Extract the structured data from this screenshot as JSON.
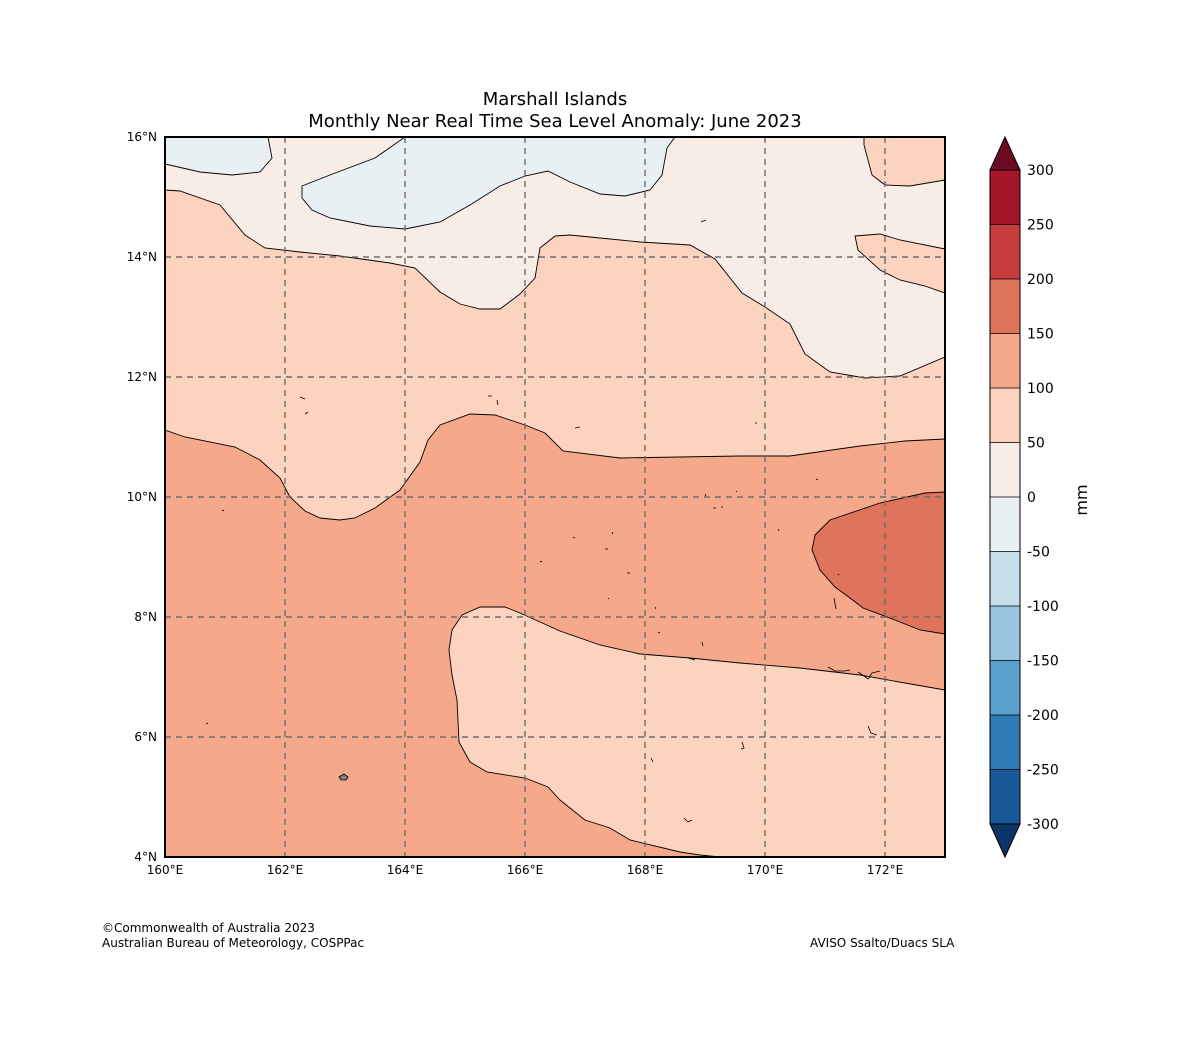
{
  "title": {
    "line1": "Marshall Islands",
    "line2": "Monthly Near Real Time Sea Level Anomaly: June 2023"
  },
  "chart_data": {
    "type": "contour-map",
    "region": "Marshall Islands",
    "period": "June 2023",
    "variable": "Monthly Near Real Time Sea Level Anomaly",
    "xlim": [
      160,
      173
    ],
    "ylim": [
      4,
      16
    ],
    "x_ticks": [
      {
        "value": 160,
        "label": "160°E"
      },
      {
        "value": 162,
        "label": "162°E"
      },
      {
        "value": 164,
        "label": "164°E"
      },
      {
        "value": 166,
        "label": "166°E"
      },
      {
        "value": 168,
        "label": "168°E"
      },
      {
        "value": 170,
        "label": "170°E"
      },
      {
        "value": 172,
        "label": "172°E"
      }
    ],
    "y_ticks": [
      {
        "value": 4,
        "label": "4°N"
      },
      {
        "value": 6,
        "label": "6°N"
      },
      {
        "value": 8,
        "label": "8°N"
      },
      {
        "value": 10,
        "label": "10°N"
      },
      {
        "value": 12,
        "label": "12°N"
      },
      {
        "value": 14,
        "label": "14°N"
      },
      {
        "value": 16,
        "label": "16°N"
      }
    ],
    "grid": true,
    "colorbar": {
      "unit": "mm",
      "ticks": [
        "300",
        "250",
        "200",
        "150",
        "100",
        "50",
        "0",
        "-50",
        "-100",
        "-150",
        "-200",
        "-250",
        "-300"
      ],
      "levels": [
        300,
        250,
        200,
        150,
        100,
        50,
        0,
        -50,
        -100,
        -150,
        -200,
        -250,
        -300
      ],
      "colors": [
        "#a51429",
        "#c83c3e",
        "#e0735b",
        "#f5a98a",
        "#fcd3be",
        "#f8ece6",
        "#e9f0f4",
        "#c7dfed",
        "#98c6df",
        "#5aa0cd",
        "#2f79b5",
        "#185a99"
      ],
      "extend_over_color": "#6b0b23",
      "extend_under_color": "#0c3467"
    },
    "regions": [
      {
        "anomaly_range": [
          50,
          100
        ],
        "color": "#fcd3be"
      },
      {
        "anomaly_range": [
          0,
          50
        ],
        "color": "#f8ece6"
      },
      {
        "anomaly_range": [
          -50,
          0
        ],
        "color": "#e9f0f4"
      },
      {
        "anomaly_range": [
          100,
          150
        ],
        "color": "#f5a98a"
      },
      {
        "anomaly_range": [
          150,
          200
        ],
        "color": "#e0735b"
      }
    ]
  },
  "footer": {
    "copyright": "©Commonwealth of Australia 2023",
    "agency": "Australian Bureau of Meteorology, COSPPac",
    "source": "AVISO Ssalto/Duacs SLA"
  }
}
